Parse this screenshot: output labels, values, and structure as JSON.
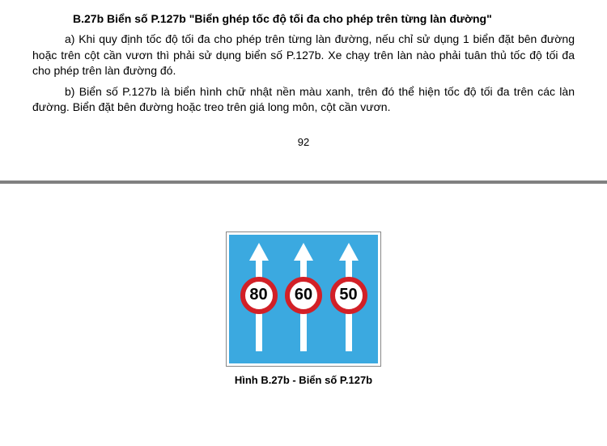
{
  "heading": "B.27b Biển số P.127b \"Biển ghép tốc độ tối đa cho phép trên từng làn đường\"",
  "paragraph_a": "a) Khi quy định tốc độ tối đa cho phép trên từng làn đường, nếu chỉ sử dụng 1 biển đặt bên đường hoặc trên cột cần vươn thì phải sử dụng biển số P.127b. Xe chạy trên làn nào phải tuân thủ tốc độ tối đa cho phép trên làn đường đó.",
  "paragraph_b": "b) Biển số P.127b là biển hình chữ nhật nền màu xanh, trên đó thể hiện tốc độ tối đa trên các làn đường. Biển đặt bên đường hoặc treo trên giá long môn, cột cần vươn.",
  "page_number": "92",
  "sign": {
    "background_color": "#3ba9e0",
    "border_color": "#ffffff",
    "arrow_color": "#ffffff",
    "circle_bg": "#ffffff",
    "circle_border": "#d22027",
    "speed_text_color": "#000000",
    "lanes": [
      {
        "speed": "80"
      },
      {
        "speed": "60"
      },
      {
        "speed": "50"
      }
    ]
  },
  "caption": "Hình B.27b - Biển số P.127b",
  "typography": {
    "body_font_size": 14,
    "caption_font_size": 13,
    "heading_weight": "bold"
  }
}
